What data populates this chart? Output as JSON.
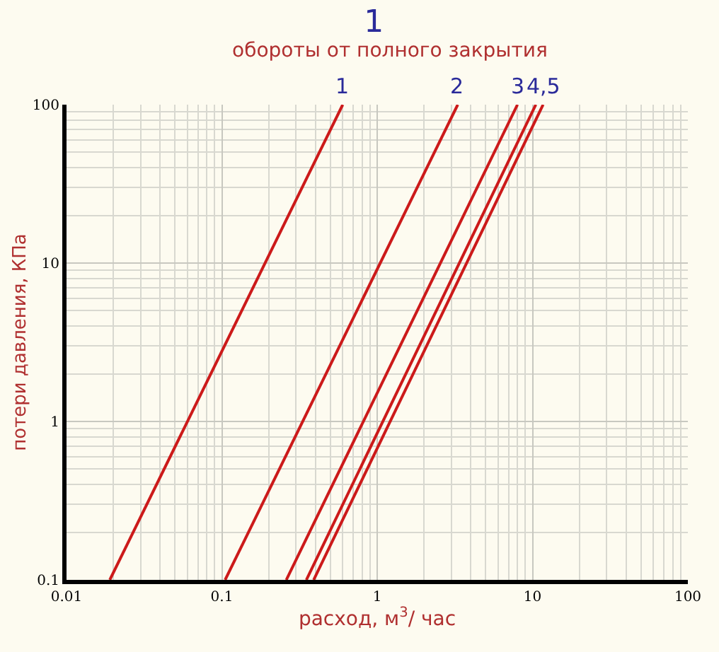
{
  "chart_data": {
    "type": "line",
    "title": "1",
    "subtitle": "обороты от полного закрытия",
    "xlabel": "расход, м$^{3}$/ час",
    "ylabel": "потери давления, КПа",
    "log": "xy",
    "grid": true,
    "marker": "none",
    "line_style": "solid",
    "xlim": [
      0.01,
      100
    ],
    "ylim": [
      0.1,
      100
    ],
    "xticks": [
      0.01,
      0.1,
      1,
      10,
      100
    ],
    "yticks": [
      0.1,
      1,
      10,
      100
    ],
    "series": [
      {
        "color": "#cc1a1a",
        "x": [
          0.019,
          0.6
        ],
        "values": [
          0.1,
          100
        ]
      },
      {
        "color": "#cc1a1a",
        "x": [
          0.105,
          3.3
        ],
        "values": [
          0.1,
          100
        ]
      },
      {
        "color": "#cc1a1a",
        "x": [
          0.26,
          8.0
        ],
        "values": [
          0.1,
          100
        ]
      },
      {
        "color": "#cc1a1a",
        "x": [
          0.35,
          10.5
        ],
        "values": [
          0.1,
          100
        ]
      },
      {
        "color": "#cc1a1a",
        "x": [
          0.39,
          11.7
        ],
        "values": [
          0.1,
          100
        ]
      }
    ],
    "annotations": [
      {
        "text": "1",
        "x": 0.6,
        "y": 100
      },
      {
        "text": "2",
        "x": 3.3,
        "y": 100
      },
      {
        "text": "3",
        "x": 8.0,
        "y": 100
      },
      {
        "text": "4,5",
        "x": 11.7,
        "y": 100
      }
    ]
  }
}
